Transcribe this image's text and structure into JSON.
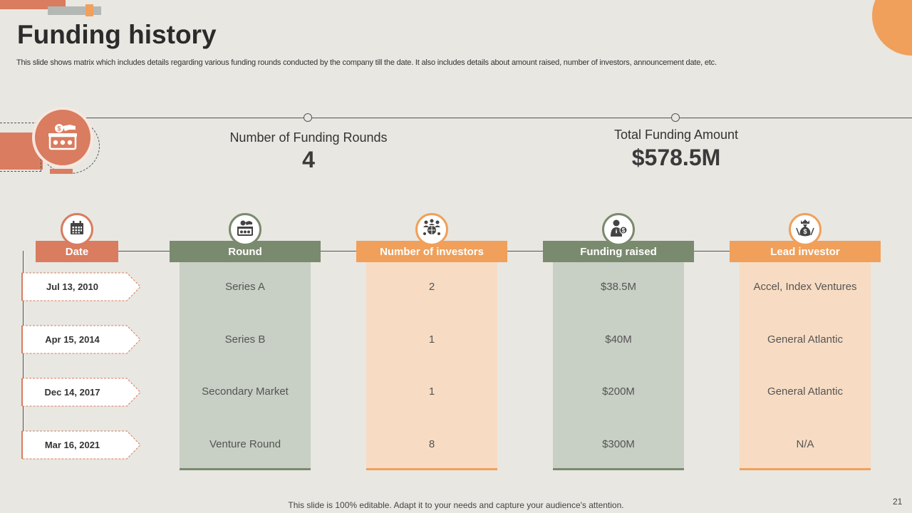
{
  "title": "Funding history",
  "subtitle": "This slide shows matrix which includes details regarding various funding rounds conducted by the company till the date. It also includes details about amount raised, number of investors, announcement date, etc.",
  "kpis": {
    "rounds_label": "Number of Funding Rounds",
    "rounds_value": "4",
    "total_label": "Total Funding Amount",
    "total_value": "$578.5M"
  },
  "table": {
    "headers": {
      "date": "Date",
      "round": "Round",
      "investors": "Number of investors",
      "funding": "Funding raised",
      "lead": "Lead investor"
    },
    "rows": [
      {
        "date": "Jul 13, 2010",
        "round": "Series A",
        "investors": "2",
        "funding": "$38.5M",
        "lead": "Accel, Index Ventures"
      },
      {
        "date": "Apr 15, 2014",
        "round": "Series B",
        "investors": "1",
        "funding": "$40M",
        "lead": "General Atlantic"
      },
      {
        "date": "Dec 14, 2017",
        "round": "Secondary Market",
        "investors": "1",
        "funding": "$200M",
        "lead": "General Atlantic"
      },
      {
        "date": "Mar 16, 2021",
        "round": "Venture Round",
        "investors": "8",
        "funding": "$300M",
        "lead": "N/A"
      }
    ]
  },
  "footer": "This slide is 100% editable. Adapt it to your needs and capture your audience's attention.",
  "page_number": "21",
  "colors": {
    "background": "#e8e7e2",
    "terracotta": "#d97c5f",
    "sage": "#7a8a6e",
    "orange": "#f0a05a",
    "sage_light": "#c8cfc4",
    "peach_light": "#f7dcc3"
  },
  "icons": {
    "hero": "donation-box-icon",
    "date": "calendar-icon",
    "round": "money-box-icon",
    "investors": "global-investors-icon",
    "funding": "investor-money-icon",
    "lead": "money-bag-crown-icon"
  }
}
